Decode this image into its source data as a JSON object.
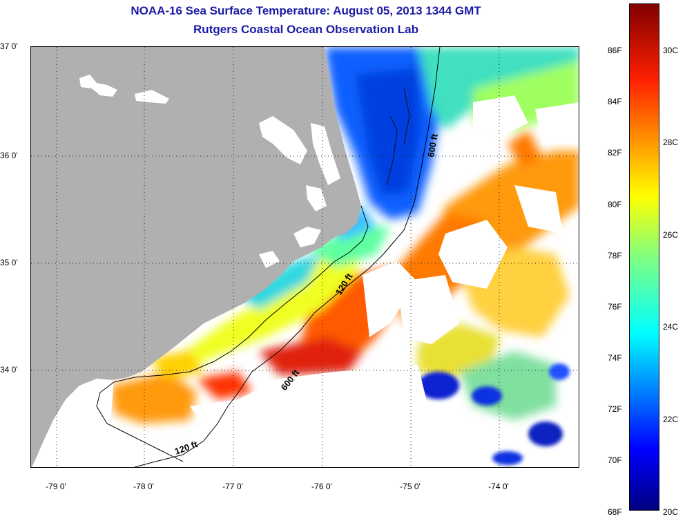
{
  "title_line1": "NOAA-16 Sea Surface Temperature:  August 05, 2013 1344 GMT",
  "title_line2": "Rutgers Coastal Ocean Observation Lab",
  "lat_labels": [
    "37 0'",
    "36 0'",
    "35 0'",
    "34 0'"
  ],
  "lon_labels": [
    "-79 0'",
    "-78 0'",
    "-77 0'",
    "-76 0'",
    "-75 0'",
    "-74 0'"
  ],
  "isobath_labels": [
    "600 ft",
    "120 ft",
    "600 ft",
    "120 ft"
  ],
  "colorbar": {
    "fahrenheit": [
      "86F",
      "84F",
      "82F",
      "80F",
      "78F",
      "76F",
      "74F",
      "72F",
      "70F",
      "68F"
    ],
    "celsius": [
      "30C",
      "28C",
      "26C",
      "24C",
      "22C",
      "20C"
    ]
  },
  "colors": {
    "land": "#b0b0b0",
    "cloud": "#ffffff",
    "title": "#1a1aa6",
    "scale": [
      "#000080",
      "#0000ff",
      "#0080ff",
      "#00ffff",
      "#80ff80",
      "#ffff00",
      "#ff8000",
      "#ff0000",
      "#800000"
    ]
  }
}
